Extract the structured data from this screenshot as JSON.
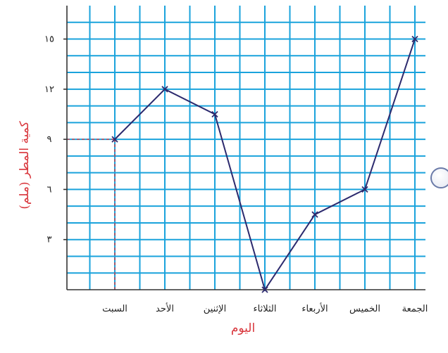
{
  "chart_data": {
    "type": "line",
    "title": "",
    "xlabel": "اليوم",
    "ylabel": "كمية المطر (ملم)",
    "categories": [
      "السبت",
      "الأحد",
      "الإثنين",
      "الثلاثاء",
      "الأربعاء",
      "الخميس",
      "الجمعة"
    ],
    "series": [
      {
        "values": [
          9,
          12,
          10.5,
          0,
          4.5,
          6,
          15
        ]
      }
    ],
    "ylim": [
      0,
      17
    ],
    "yticks": [
      3,
      6,
      9,
      12,
      15
    ],
    "ytick_labels": [
      "٣",
      "٦",
      "٩",
      "١٢",
      "١٥"
    ],
    "grid": true,
    "guide_point": {
      "category": "السبت",
      "value": 9
    },
    "colors": {
      "grid": "#1aa3dc",
      "line": "#2c2a6e",
      "axis_title": "#d8343a",
      "guide": "#d8343a"
    }
  }
}
